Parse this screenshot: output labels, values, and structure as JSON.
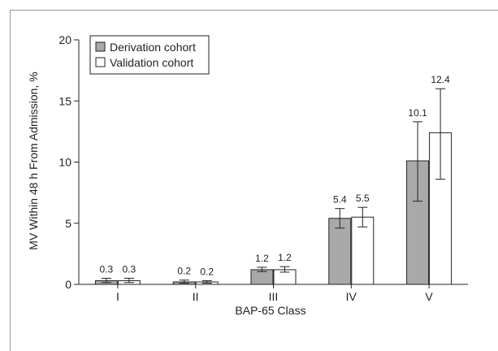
{
  "chart_data": {
    "type": "bar",
    "xlabel": "BAP-65 Class",
    "ylabel": "MV Within 48 h From Admission, %",
    "ylim": [
      0,
      20
    ],
    "yticks": [
      0,
      5,
      10,
      15,
      20
    ],
    "categories": [
      "I",
      "II",
      "III",
      "IV",
      "V"
    ],
    "legend_position": "top-left",
    "series": [
      {
        "name": "Derivation cohort",
        "color": "#a9a9a9",
        "values": [
          0.3,
          0.2,
          1.2,
          5.4,
          10.1
        ],
        "labels": [
          "0.3",
          "0.2",
          "1.2",
          "5.4",
          "10.1"
        ],
        "ci_low": [
          0.15,
          0.1,
          1.05,
          4.6,
          6.8
        ],
        "ci_high": [
          0.5,
          0.35,
          1.4,
          6.2,
          13.3
        ]
      },
      {
        "name": "Validation cohort",
        "color": "#ffffff",
        "values": [
          0.3,
          0.2,
          1.2,
          5.5,
          12.4
        ],
        "labels": [
          "0.3",
          "0.2",
          "1.2",
          "5.5",
          "12.4"
        ],
        "ci_low": [
          0.15,
          0.1,
          1.0,
          4.7,
          8.6
        ],
        "ci_high": [
          0.5,
          0.3,
          1.45,
          6.3,
          16.0
        ]
      }
    ]
  }
}
